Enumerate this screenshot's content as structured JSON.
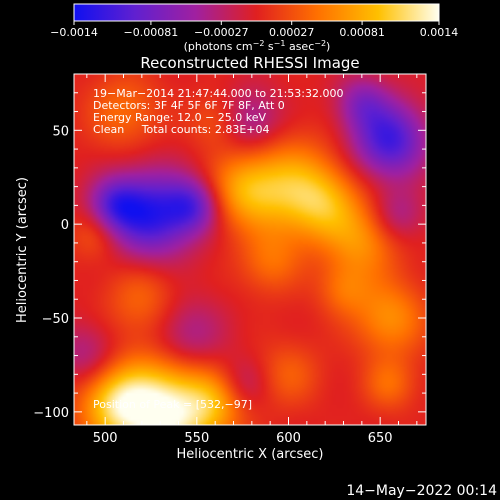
{
  "chart_data": {
    "type": "heatmap",
    "title": "Reconstructed RHESSI Image",
    "xlabel": "Heliocentric X (arcsec)",
    "ylabel": "Heliocentric Y (arcsec)",
    "xlim": [
      483,
      675
    ],
    "ylim": [
      -107,
      80
    ],
    "x_ticks": [
      500,
      550,
      600,
      650
    ],
    "x_tick_labels": [
      "500",
      "550",
      "600",
      "650"
    ],
    "y_ticks": [
      50,
      0,
      -50,
      -100
    ],
    "y_tick_labels": [
      "50",
      "0",
      "−50",
      "−100"
    ],
    "colorbar": {
      "ticks": [
        -0.0014,
        -0.00081,
        -0.00027,
        0.00027,
        0.00081,
        0.0014
      ],
      "labels": [
        "−0.0014",
        "−0.00081",
        "−0.00027",
        "0.00027",
        "0.00081",
        "0.0014"
      ],
      "units_prefix": "(photons cm",
      "units_exp1": "−2",
      "units_mid1": " s",
      "units_exp2": "−1",
      "units_mid2": " asec",
      "units_exp3": "−2",
      "units_suffix": ")",
      "colors": [
        "#1010f0",
        "#6020d0",
        "#a020a0",
        "#e02020",
        "#ff7000",
        "#ffc000",
        "#fffff0"
      ]
    },
    "annotations": [
      "19−Mar−2014 21:47:44.000 to 21:53:32.000",
      "Detectors: 3F 4F 5F 6F 7F 8F, Att 0",
      "Energy Range: 12.0 − 25.0 keV",
      "Clean     Total counts: 2.83E+04"
    ],
    "peak_label": "Position of Peak = [532,−97]",
    "peak": [
      532,
      -97
    ],
    "blobs": [
      {
        "x": 532,
        "y": -100,
        "r": 20,
        "v": 1.0
      },
      {
        "x": 505,
        "y": -95,
        "r": 14,
        "v": 0.55
      },
      {
        "x": 560,
        "y": -95,
        "r": 12,
        "v": 0.35
      },
      {
        "x": 600,
        "y": 20,
        "r": 18,
        "v": 0.55
      },
      {
        "x": 575,
        "y": 18,
        "r": 14,
        "v": 0.45
      },
      {
        "x": 620,
        "y": 10,
        "r": 14,
        "v": 0.45
      },
      {
        "x": 640,
        "y": -10,
        "r": 14,
        "v": 0.42
      },
      {
        "x": 655,
        "y": -50,
        "r": 14,
        "v": 0.45
      },
      {
        "x": 590,
        "y": -20,
        "r": 12,
        "v": 0.3
      },
      {
        "x": 630,
        "y": -35,
        "r": 10,
        "v": 0.28
      },
      {
        "x": 520,
        "y": -40,
        "r": 14,
        "v": 0.28
      },
      {
        "x": 495,
        "y": -5,
        "r": 10,
        "v": 0.25
      },
      {
        "x": 510,
        "y": 60,
        "r": 14,
        "v": 0.3
      },
      {
        "x": 560,
        "y": 55,
        "r": 10,
        "v": 0.22
      },
      {
        "x": 600,
        "y": -80,
        "r": 12,
        "v": 0.25
      },
      {
        "x": 655,
        "y": -85,
        "r": 10,
        "v": 0.3
      },
      {
        "x": 525,
        "y": 5,
        "r": 16,
        "v": -0.85
      },
      {
        "x": 505,
        "y": 10,
        "r": 10,
        "v": -0.55
      },
      {
        "x": 548,
        "y": 10,
        "r": 10,
        "v": -0.55
      },
      {
        "x": 655,
        "y": 45,
        "r": 14,
        "v": -0.8
      },
      {
        "x": 640,
        "y": 65,
        "r": 10,
        "v": -0.4
      },
      {
        "x": 580,
        "y": 55,
        "r": 12,
        "v": -0.35
      },
      {
        "x": 545,
        "y": -60,
        "r": 14,
        "v": -0.35
      },
      {
        "x": 490,
        "y": -70,
        "r": 12,
        "v": -0.3
      },
      {
        "x": 575,
        "y": -85,
        "r": 10,
        "v": -0.25
      },
      {
        "x": 660,
        "y": 5,
        "r": 10,
        "v": -0.3
      }
    ]
  },
  "footer": {
    "timestamp": "14−May−2022 00:14"
  }
}
